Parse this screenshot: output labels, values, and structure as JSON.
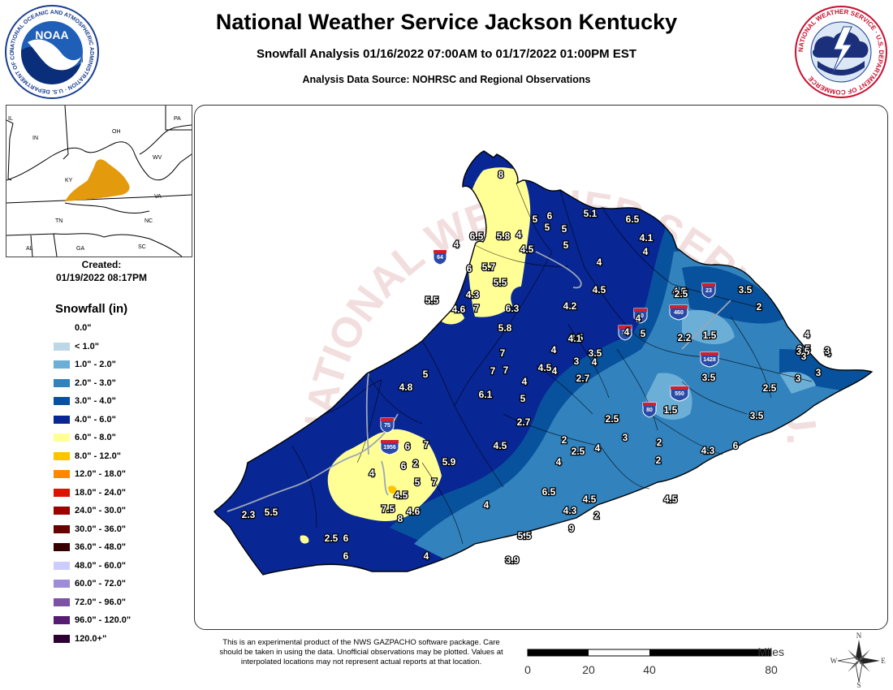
{
  "header": {
    "title": "National Weather Service Jackson Kentucky",
    "subtitle": "Snowfall Analysis 01/16/2022 07:00AM to 01/17/2022 01:00PM EST",
    "source": "Analysis Data Source: NOHRSC and Regional Observations"
  },
  "logos": {
    "noaa_center": "NOAA",
    "noaa_ring": "NATIONAL OCEANIC AND ATMOSPHERIC ADMINISTRATION · U.S. DEPARTMENT OF COMMERCE",
    "nws_ring": "NATIONAL WEATHER SERVICE · U.S. DEPARTMENT OF COMMERCE"
  },
  "inset": {
    "states": [
      "IL",
      "OH",
      "PA",
      "IN",
      "WV",
      "KY",
      "VA",
      "TN",
      "NC",
      "AL",
      "GA",
      "SC"
    ],
    "highlight_color": "#e39a0c"
  },
  "created": {
    "label": "Created:",
    "date": "01/19/2022 08:17PM"
  },
  "legend": {
    "title": "Snowfall (in)",
    "items": [
      {
        "label": "0.0\"",
        "color": "#ffffff"
      },
      {
        "label": "< 1.0\"",
        "color": "#bdd7e7"
      },
      {
        "label": "1.0\" - 2.0\"",
        "color": "#6baed6"
      },
      {
        "label": "2.0\" - 3.0\"",
        "color": "#3182bd"
      },
      {
        "label": "3.0\" - 4.0\"",
        "color": "#08519c"
      },
      {
        "label": "4.0\" - 6.0\"",
        "color": "#082694"
      },
      {
        "label": "6.0\" - 8.0\"",
        "color": "#ffff96"
      },
      {
        "label": "8.0\" - 12.0\"",
        "color": "#ffc400"
      },
      {
        "label": "12.0\" - 18.0\"",
        "color": "#ff8700"
      },
      {
        "label": "18.0\" - 24.0\"",
        "color": "#db1400"
      },
      {
        "label": "24.0\" - 30.0\"",
        "color": "#9e0000"
      },
      {
        "label": "30.0\" - 36.0\"",
        "color": "#690000"
      },
      {
        "label": "36.0\" - 48.0\"",
        "color": "#360000"
      },
      {
        "label": "48.0\" - 60.0\"",
        "color": "#ccccff"
      },
      {
        "label": "60.0\" - 72.0\"",
        "color": "#9f8cd8"
      },
      {
        "label": "72.0\" - 96.0\"",
        "color": "#7c52a5"
      },
      {
        "label": "96.0\" - 120.0\"",
        "color": "#561c72"
      },
      {
        "label": "120.0+\"",
        "color": "#2e0033"
      }
    ]
  },
  "map": {
    "watermark": "NATIONAL WEATHER SERVICE · U.S. DEPARTMENT OF COMMERCE",
    "interstates": [
      "64",
      "75",
      "40",
      "30",
      "23",
      "460",
      "1428",
      "550",
      "80",
      "1956"
    ],
    "snowfall_values": [
      "8",
      "5",
      "6",
      "5.1",
      "6.5",
      "4",
      "6.5",
      "5.8",
      "4",
      "5",
      "5",
      "4.1",
      "4",
      "4.5",
      "5",
      "4",
      "6",
      "5.7",
      "5.5",
      "4.5",
      "4.5",
      "2.5",
      "3.5",
      "2",
      "4.3",
      "5.5",
      "4.6",
      "7",
      "6.3",
      "4.2",
      "4",
      "4",
      "5",
      "2.2",
      "1.5",
      "7",
      "5.8",
      "4",
      "4",
      "4",
      "3.5",
      "3",
      "3.5",
      "4",
      "3.5",
      "7",
      "7",
      "4.1",
      "3",
      "3.5",
      "3",
      "3",
      "4",
      "4",
      "4.5",
      "2.7",
      "3.5",
      "3",
      "2.5",
      "4.8",
      "5",
      "6.1",
      "5",
      "1.5",
      "2.5",
      "3.5",
      "2.7",
      "2.5",
      "3",
      "2",
      "2",
      "4.5",
      "4",
      "2.5",
      "4",
      "2",
      "4.3",
      "6",
      "6",
      "7",
      "5.9",
      "2",
      "6",
      "4",
      "5",
      "7",
      "6.5",
      "4.5",
      "4.5",
      "4.5",
      "7.5",
      "4",
      "4.3",
      "2",
      "4.6",
      "8",
      "9",
      "2.3",
      "5.5",
      "5.5",
      "2.5",
      "6",
      "6",
      "4",
      "3.9",
      "3.5"
    ]
  },
  "disclaimer": "This is an experimental product of the NWS GAZPACHO software package. Care should be taken in using the data. Unofficial observations may be plotted. Values at interpolated locations may not represent actual reports at that location.",
  "scale": {
    "units": "Miles",
    "ticks": [
      "0",
      "20",
      "40",
      "80"
    ]
  },
  "compass": {
    "n": "N",
    "s": "S",
    "e": "E",
    "w": "W"
  }
}
